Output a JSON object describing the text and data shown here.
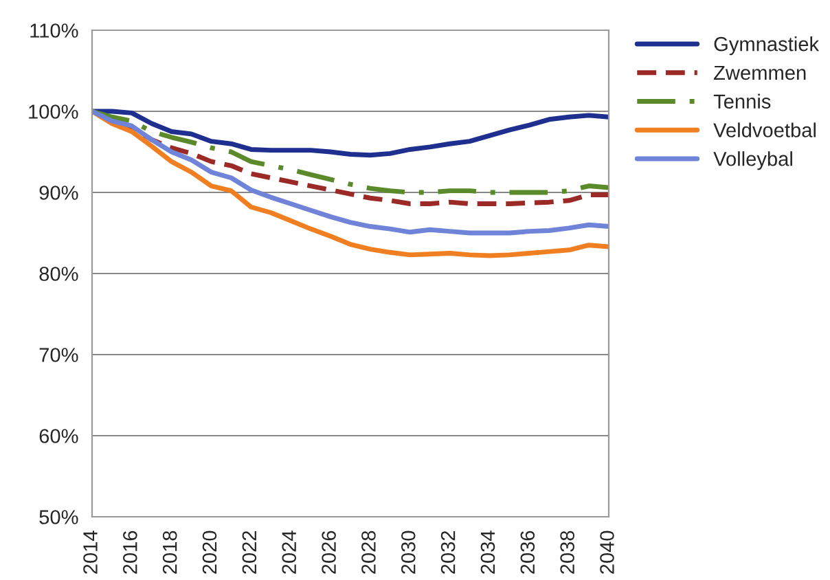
{
  "chart_data": {
    "type": "line",
    "x": [
      2014,
      2015,
      2016,
      2017,
      2018,
      2019,
      2020,
      2021,
      2022,
      2023,
      2024,
      2025,
      2026,
      2027,
      2028,
      2029,
      2030,
      2031,
      2032,
      2033,
      2034,
      2035,
      2036,
      2037,
      2038,
      2039,
      2040
    ],
    "series": [
      {
        "name": "Gymnastiek",
        "color": "#1f2f8f",
        "line_style": "solid",
        "values": [
          100,
          100,
          99.8,
          98.5,
          97.5,
          97.2,
          96.3,
          96.0,
          95.3,
          95.2,
          95.2,
          95.2,
          95.0,
          94.7,
          94.6,
          94.8,
          95.3,
          95.6,
          96.0,
          96.3,
          97.0,
          97.7,
          98.3,
          99.0,
          99.3,
          99.5,
          99.3
        ]
      },
      {
        "name": "Zwemmen",
        "color": "#9b2a26",
        "line_style": "dashed",
        "values": [
          100,
          99,
          98,
          96.5,
          95.5,
          94.8,
          93.8,
          93.3,
          92.3,
          91.8,
          91.3,
          90.8,
          90.3,
          89.8,
          89.3,
          89.0,
          88.6,
          88.6,
          88.8,
          88.6,
          88.6,
          88.6,
          88.7,
          88.8,
          89.0,
          89.7,
          89.7
        ]
      },
      {
        "name": "Tennis",
        "color": "#5a8a2a",
        "line_style": "dashdot",
        "values": [
          100,
          99.3,
          98.8,
          97.5,
          96.8,
          96.2,
          95.5,
          95.0,
          93.8,
          93.3,
          92.8,
          92.2,
          91.6,
          91.0,
          90.5,
          90.2,
          90.0,
          90.0,
          90.2,
          90.2,
          90.0,
          90.0,
          90.0,
          90.0,
          90.2,
          90.8,
          90.6
        ]
      },
      {
        "name": "Veldvoetbal",
        "color": "#f07f22",
        "line_style": "solid",
        "values": [
          100,
          98.5,
          97.5,
          95.7,
          93.8,
          92.5,
          90.8,
          90.2,
          88.2,
          87.5,
          86.5,
          85.5,
          84.6,
          83.6,
          83.0,
          82.6,
          82.3,
          82.4,
          82.5,
          82.3,
          82.2,
          82.3,
          82.5,
          82.7,
          82.9,
          83.5,
          83.3
        ]
      },
      {
        "name": "Volleybal",
        "color": "#6f84d8",
        "line_style": "solid",
        "values": [
          100,
          98.8,
          98.2,
          96.5,
          95.0,
          94.0,
          92.5,
          91.8,
          90.3,
          89.4,
          88.6,
          87.8,
          87.0,
          86.3,
          85.8,
          85.5,
          85.1,
          85.4,
          85.2,
          85.0,
          85.0,
          85.0,
          85.2,
          85.3,
          85.6,
          86.0,
          85.8
        ]
      }
    ],
    "xlim": [
      2014,
      2040
    ],
    "xticks": [
      2014,
      2016,
      2018,
      2020,
      2022,
      2024,
      2026,
      2028,
      2030,
      2032,
      2034,
      2036,
      2038,
      2040
    ],
    "ylim": [
      50,
      110
    ],
    "yticks": [
      {
        "value": 50,
        "label": "50%"
      },
      {
        "value": 60,
        "label": "60%"
      },
      {
        "value": 70,
        "label": "70%"
      },
      {
        "value": 80,
        "label": "80%"
      },
      {
        "value": 90,
        "label": "90%"
      },
      {
        "value": 100,
        "label": "100%"
      },
      {
        "value": 110,
        "label": "110%"
      }
    ],
    "grid": "y",
    "legend": "right",
    "marker": "none"
  }
}
